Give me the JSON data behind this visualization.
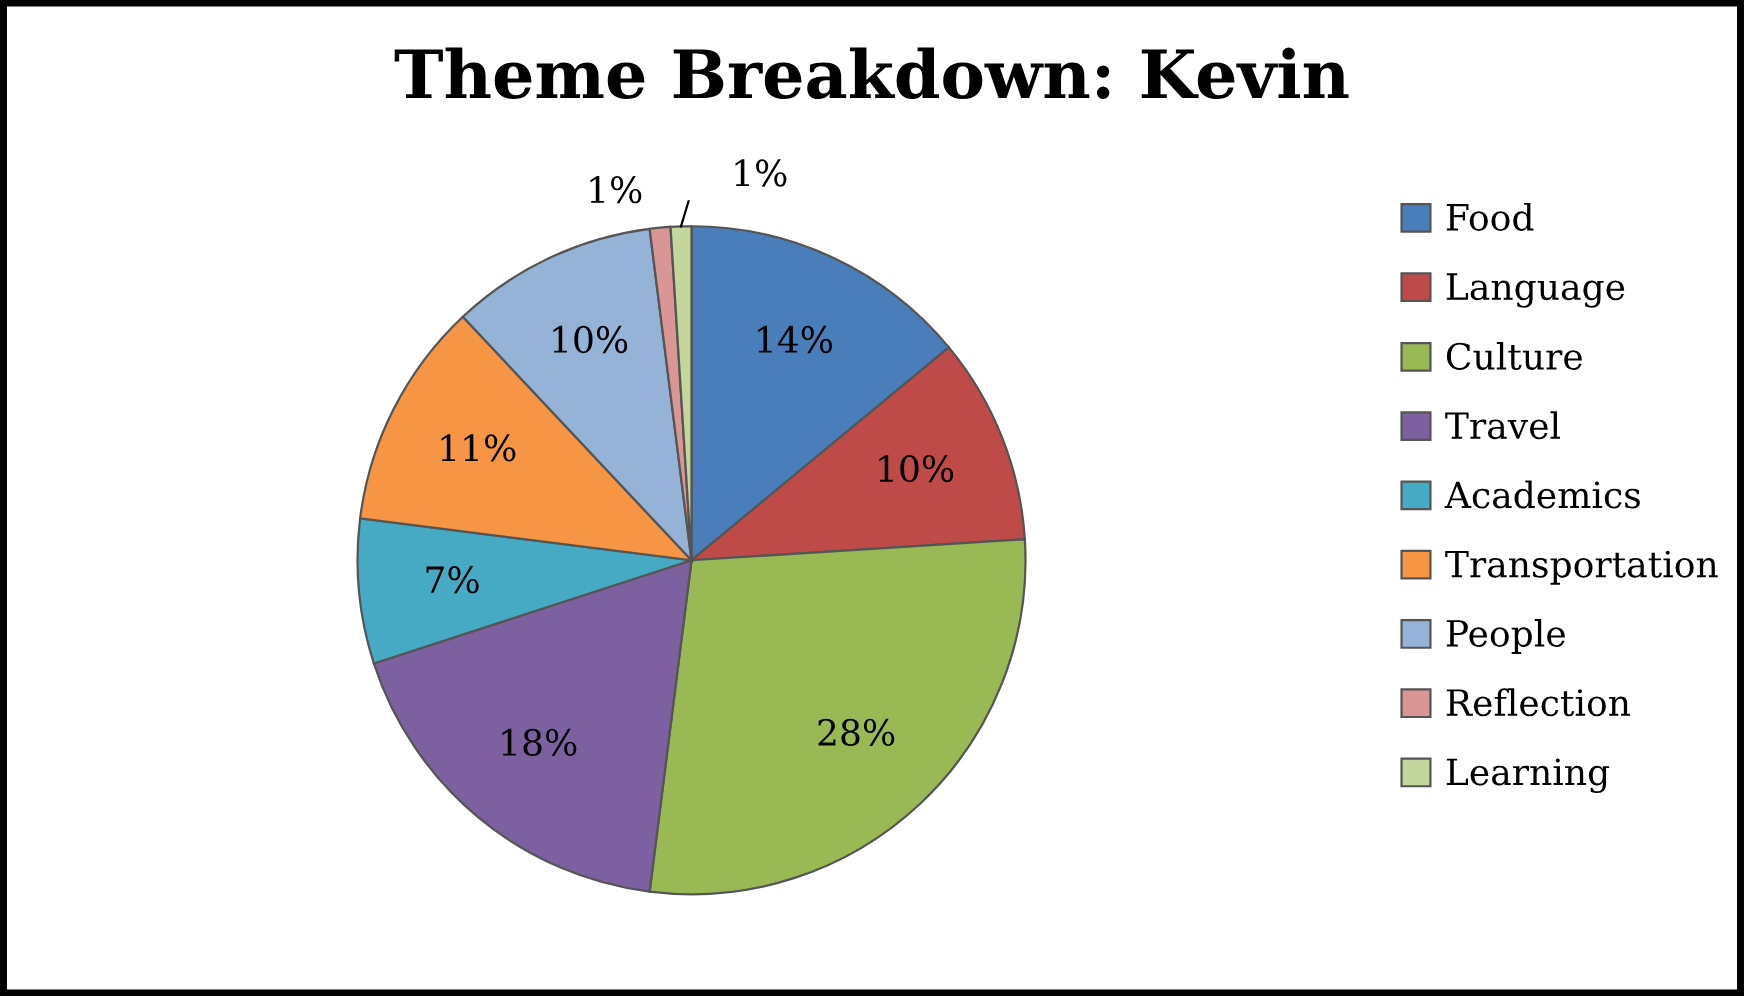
{
  "chart_data": {
    "type": "pie",
    "title": "Theme Breakdown: Kevin",
    "categories": [
      "Food",
      "Language",
      "Culture",
      "Travel",
      "Academics",
      "Transportation",
      "People",
      "Reflection",
      "Learning"
    ],
    "values": [
      14,
      10,
      28,
      18,
      7,
      11,
      10,
      1,
      1
    ],
    "colors": [
      "#4a7ebb",
      "#be4b48",
      "#98b954",
      "#7d60a0",
      "#46aac5",
      "#f69544",
      "#95b3d7",
      "#d99694",
      "#c3d69b"
    ],
    "value_labels": [
      "14%",
      "10%",
      "28%",
      "18%",
      "7%",
      "11%",
      "10%",
      "1%",
      "1%"
    ],
    "legend": "right"
  }
}
